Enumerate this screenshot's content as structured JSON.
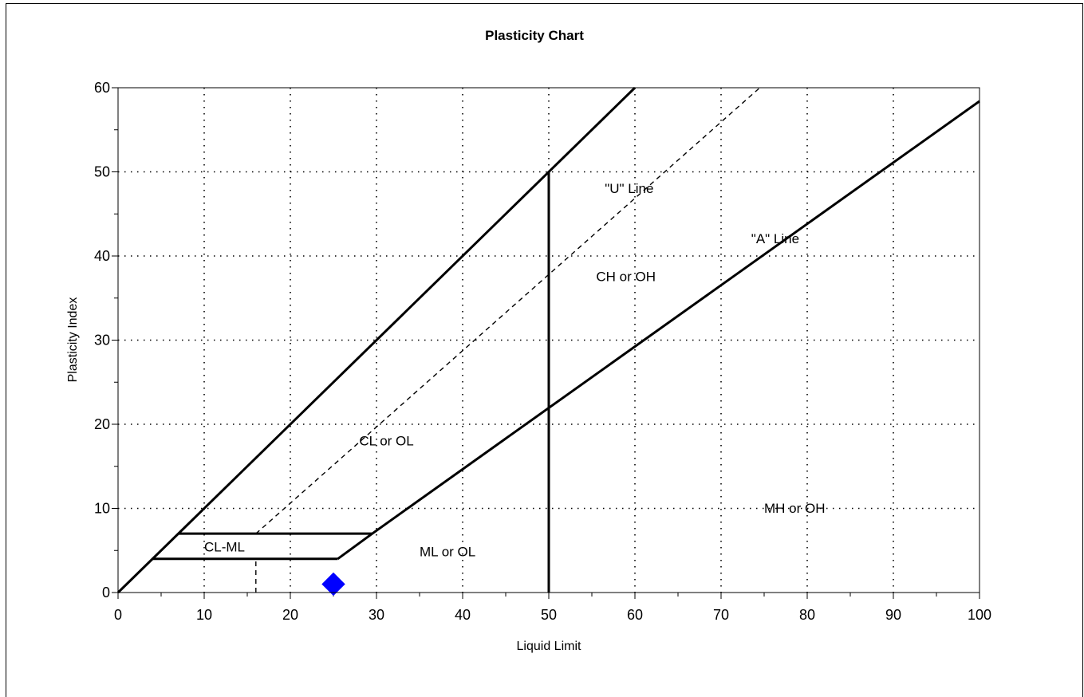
{
  "chart_data": {
    "type": "scatter",
    "title": "Plasticity Chart",
    "xlabel": "Liquid Limit",
    "ylabel": "Plasticity Index",
    "xlim": [
      0,
      100
    ],
    "ylim": [
      0,
      60
    ],
    "x_ticks": [
      "0",
      "10",
      "20",
      "30",
      "40",
      "50",
      "60",
      "70",
      "80",
      "90",
      "100"
    ],
    "y_ticks": [
      "0",
      "10",
      "20",
      "30",
      "40",
      "50",
      "60"
    ],
    "grid": true,
    "grid_style": "dotted",
    "reference_lines": [
      {
        "label": "\"U\" Line",
        "style": "solid",
        "points": [
          [
            0,
            0
          ],
          [
            60,
            60
          ]
        ]
      },
      {
        "style": "solid",
        "points": [
          [
            4,
            4
          ],
          [
            25.5,
            4
          ]
        ]
      },
      {
        "style": "solid",
        "points": [
          [
            7,
            7
          ],
          [
            29.5,
            7
          ]
        ]
      },
      {
        "label": "\"A\" Line",
        "style": "solid",
        "points": [
          [
            25.5,
            4
          ],
          [
            29.5,
            7
          ],
          [
            100,
            58.4
          ]
        ]
      },
      {
        "style": "dashed",
        "points": [
          [
            16,
            7
          ],
          [
            74.5,
            60
          ]
        ]
      },
      {
        "style": "solid",
        "points": [
          [
            50,
            0
          ],
          [
            50,
            50
          ]
        ]
      },
      {
        "style": "dashed",
        "points": [
          [
            16,
            0
          ],
          [
            16,
            4
          ]
        ]
      }
    ],
    "annotations": [
      {
        "text": "\"U\" Line",
        "x": 56.5,
        "y": 47.5
      },
      {
        "text": "\"A\" Line",
        "x": 73.5,
        "y": 41.5
      },
      {
        "text": "CH or OH",
        "x": 55.5,
        "y": 37
      },
      {
        "text": "CL or OL",
        "x": 28,
        "y": 17.5
      },
      {
        "text": "MH or OH",
        "x": 75,
        "y": 9.5
      },
      {
        "text": "CL-ML",
        "x": 10,
        "y": 4.9
      },
      {
        "text": "ML or OL",
        "x": 35,
        "y": 4.3
      }
    ],
    "series": [
      {
        "marker": "diamond",
        "color": "#0000ff",
        "points": [
          [
            25,
            1
          ]
        ]
      }
    ]
  }
}
